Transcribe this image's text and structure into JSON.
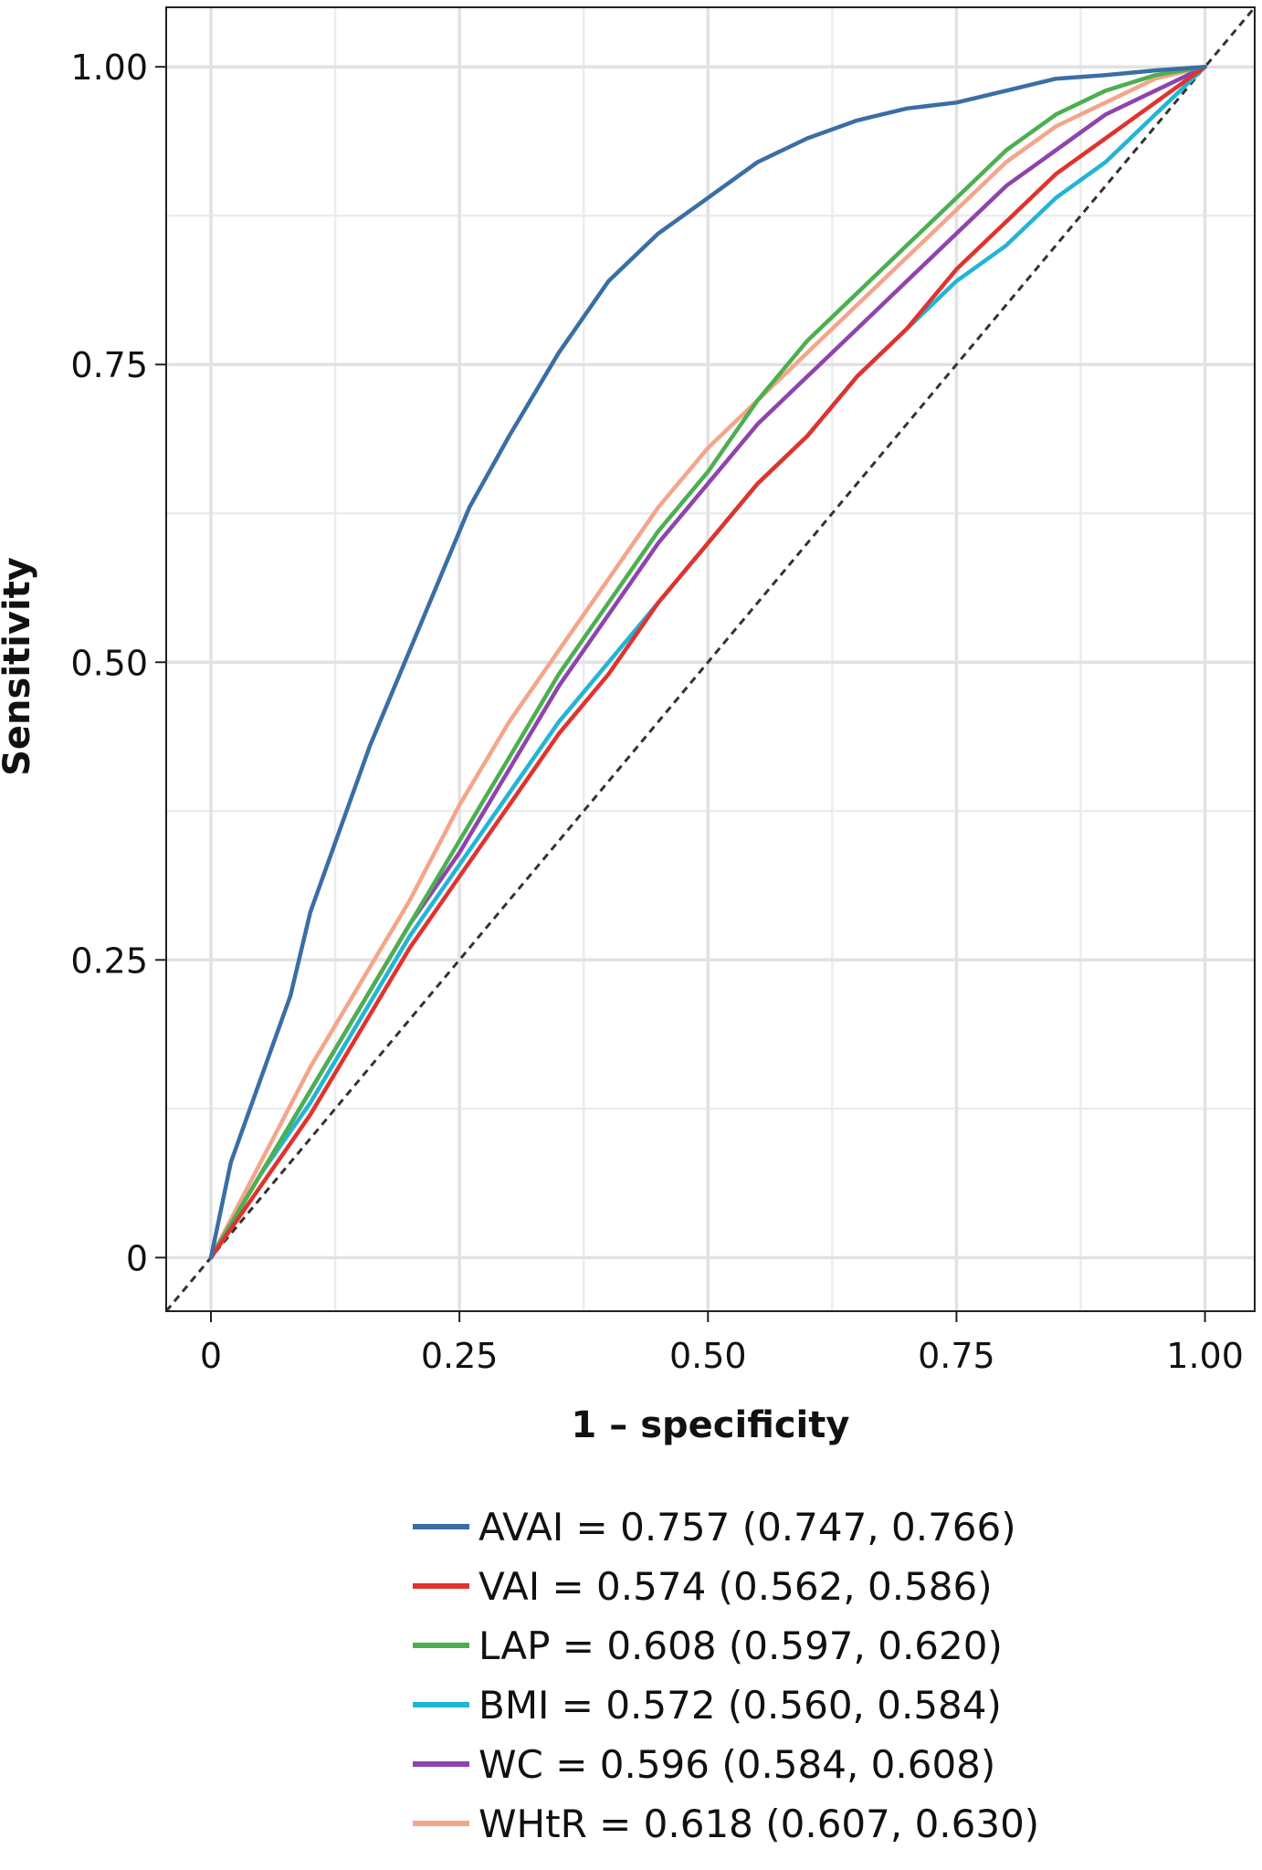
{
  "chart_data": {
    "type": "line",
    "title": "",
    "xlabel": "1 – specificity",
    "ylabel": "Sensitivity",
    "xlim": [
      -0.045,
      1.05
    ],
    "ylim": [
      -0.045,
      1.05
    ],
    "x_ticks": [
      0,
      0.25,
      0.5,
      0.75,
      1.0
    ],
    "x_tick_labels": [
      "0",
      "0.25",
      "0.50",
      "0.75",
      "1.00"
    ],
    "y_ticks": [
      0,
      0.25,
      0.5,
      0.75,
      1.0
    ],
    "y_tick_labels": [
      "0",
      "0.25",
      "0.50",
      "0.75",
      "1.00"
    ],
    "minor_gridlines": [
      0.125,
      0.375,
      0.625,
      0.875
    ],
    "grid": true,
    "legend_position": "bottom",
    "reference_line": {
      "name": "chance",
      "x": [
        0,
        1
      ],
      "y": [
        0,
        1
      ],
      "style": "dashed",
      "color": "#333333"
    },
    "series": [
      {
        "name": "AVAI",
        "legend_label": "AVAI = 0.757 (0.747, 0.766)",
        "color": "#3a6ea5",
        "x": [
          0,
          0.02,
          0.05,
          0.08,
          0.1,
          0.13,
          0.16,
          0.2,
          0.23,
          0.26,
          0.3,
          0.35,
          0.4,
          0.45,
          0.5,
          0.55,
          0.6,
          0.65,
          0.7,
          0.75,
          0.8,
          0.85,
          0.9,
          0.95,
          1.0
        ],
        "y": [
          0,
          0.08,
          0.15,
          0.22,
          0.29,
          0.36,
          0.43,
          0.51,
          0.57,
          0.63,
          0.69,
          0.76,
          0.82,
          0.86,
          0.89,
          0.92,
          0.94,
          0.955,
          0.965,
          0.97,
          0.98,
          0.99,
          0.993,
          0.997,
          1.0
        ]
      },
      {
        "name": "VAI",
        "legend_label": "VAI = 0.574 (0.562, 0.586)",
        "color": "#e0332e",
        "x": [
          0,
          0.05,
          0.1,
          0.15,
          0.2,
          0.25,
          0.3,
          0.35,
          0.4,
          0.45,
          0.5,
          0.55,
          0.6,
          0.65,
          0.7,
          0.75,
          0.8,
          0.85,
          0.9,
          0.95,
          1.0
        ],
        "y": [
          0,
          0.06,
          0.12,
          0.19,
          0.26,
          0.32,
          0.38,
          0.44,
          0.49,
          0.55,
          0.6,
          0.65,
          0.69,
          0.74,
          0.78,
          0.83,
          0.87,
          0.91,
          0.94,
          0.97,
          1.0
        ]
      },
      {
        "name": "LAP",
        "legend_label": "LAP = 0.608 (0.597, 0.620)",
        "color": "#4caf50",
        "x": [
          0,
          0.05,
          0.1,
          0.15,
          0.2,
          0.25,
          0.3,
          0.35,
          0.4,
          0.45,
          0.5,
          0.55,
          0.6,
          0.65,
          0.7,
          0.75,
          0.8,
          0.85,
          0.9,
          0.95,
          1.0
        ],
        "y": [
          0,
          0.07,
          0.14,
          0.21,
          0.28,
          0.35,
          0.42,
          0.49,
          0.55,
          0.61,
          0.66,
          0.72,
          0.77,
          0.81,
          0.85,
          0.89,
          0.93,
          0.96,
          0.98,
          0.993,
          1.0
        ]
      },
      {
        "name": "BMI",
        "legend_label": "BMI = 0.572 (0.560, 0.584)",
        "color": "#21b5d6",
        "x": [
          0,
          0.05,
          0.1,
          0.15,
          0.2,
          0.25,
          0.3,
          0.35,
          0.4,
          0.45,
          0.5,
          0.55,
          0.6,
          0.65,
          0.7,
          0.75,
          0.8,
          0.85,
          0.9,
          0.95,
          1.0
        ],
        "y": [
          0,
          0.07,
          0.13,
          0.2,
          0.27,
          0.33,
          0.39,
          0.45,
          0.5,
          0.55,
          0.6,
          0.65,
          0.69,
          0.74,
          0.78,
          0.82,
          0.85,
          0.89,
          0.92,
          0.96,
          1.0
        ]
      },
      {
        "name": "WC",
        "legend_label": "WC = 0.596 (0.584, 0.608)",
        "color": "#8e44ad",
        "x": [
          0,
          0.05,
          0.1,
          0.15,
          0.2,
          0.25,
          0.3,
          0.35,
          0.4,
          0.45,
          0.5,
          0.55,
          0.6,
          0.65,
          0.7,
          0.75,
          0.8,
          0.85,
          0.9,
          0.95,
          1.0
        ],
        "y": [
          0,
          0.07,
          0.14,
          0.21,
          0.28,
          0.34,
          0.41,
          0.48,
          0.54,
          0.6,
          0.65,
          0.7,
          0.74,
          0.78,
          0.82,
          0.86,
          0.9,
          0.93,
          0.96,
          0.98,
          1.0
        ]
      },
      {
        "name": "WHtR",
        "legend_label": "WHtR = 0.618 (0.607, 0.630)",
        "color": "#f4a58a",
        "x": [
          0,
          0.05,
          0.1,
          0.15,
          0.2,
          0.25,
          0.3,
          0.35,
          0.4,
          0.45,
          0.5,
          0.55,
          0.6,
          0.65,
          0.7,
          0.75,
          0.8,
          0.85,
          0.9,
          0.95,
          1.0
        ],
        "y": [
          0,
          0.08,
          0.16,
          0.23,
          0.3,
          0.38,
          0.45,
          0.51,
          0.57,
          0.63,
          0.68,
          0.72,
          0.76,
          0.8,
          0.84,
          0.88,
          0.92,
          0.95,
          0.97,
          0.99,
          1.0
        ]
      }
    ]
  }
}
